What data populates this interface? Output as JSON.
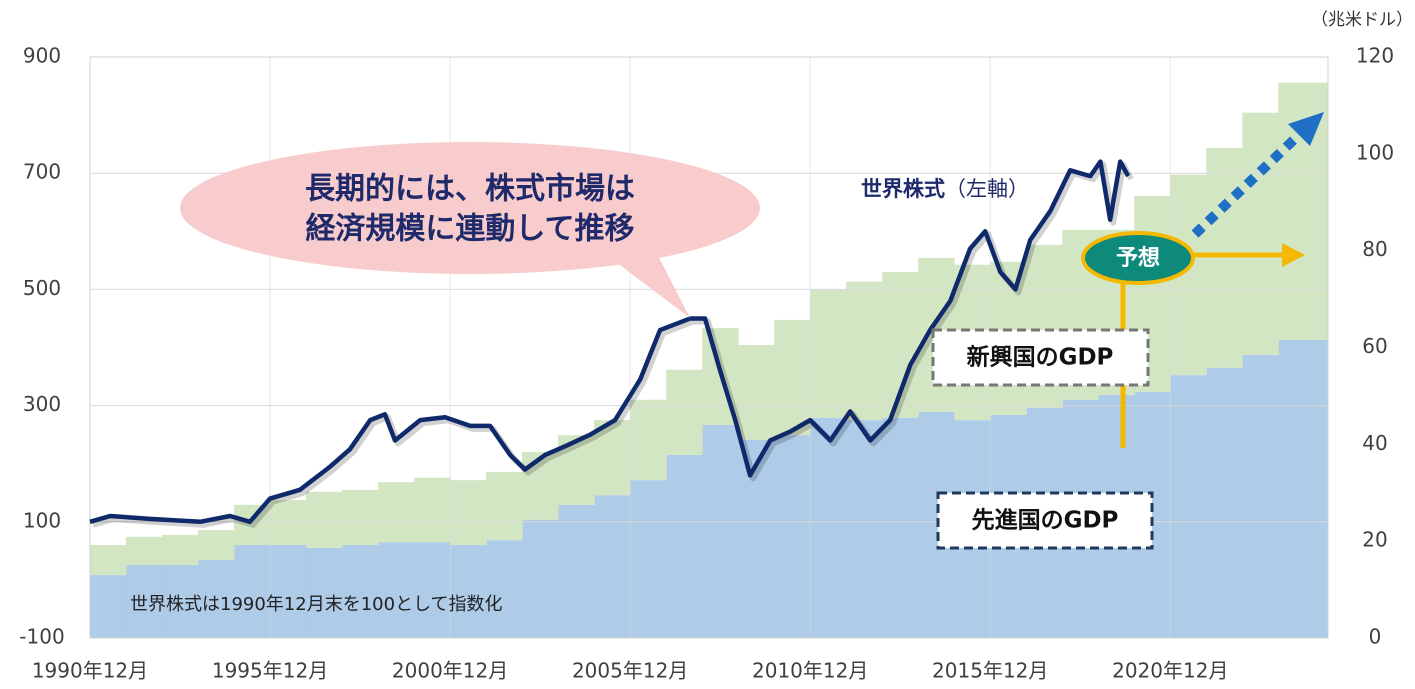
{
  "chart_data": {
    "type": "line-area",
    "annotations": [
      "長期的には、株式市場は",
      "経済規模に連動して推移",
      "（左軸）",
      "予想",
      "世界株式は1990年12月末を100として指数化"
    ],
    "y2_unit": "（兆米ドル）",
    "xlim": [
      1990.92,
      2025.3
    ],
    "xticks": [
      {
        "value": 1990.92,
        "label": "1990年12月"
      },
      {
        "value": 1995.92,
        "label": "1995年12月"
      },
      {
        "value": 2000.92,
        "label": "2000年12月"
      },
      {
        "value": 2005.92,
        "label": "2005年12月"
      },
      {
        "value": 2010.92,
        "label": "2010年12月"
      },
      {
        "value": 2015.92,
        "label": "2015年12月"
      },
      {
        "value": 2020.92,
        "label": "2020年12月"
      }
    ],
    "ylim": [
      -100,
      900
    ],
    "yticks": [
      -100,
      100,
      300,
      500,
      700,
      900
    ],
    "y2lim": [
      0,
      120
    ],
    "y2ticks": [
      0,
      20,
      40,
      60,
      80,
      100,
      120
    ],
    "grid": true,
    "series": [
      {
        "name": "先進国のGDP",
        "type": "step-area",
        "axis": "y2",
        "color": "#aecbe8",
        "x": [
          1990.92,
          1991.92,
          1992.92,
          1993.92,
          1994.92,
          1995.92,
          1996.92,
          1997.92,
          1998.92,
          1999.92,
          2000.92,
          2001.92,
          2002.92,
          2003.92,
          2004.92,
          2005.92,
          2006.92,
          2007.92,
          2008.92,
          2009.92,
          2010.92,
          2011.92,
          2012.92,
          2013.92,
          2014.92,
          2015.92,
          2016.92,
          2017.92,
          2018.92,
          2019.92,
          2020.92,
          2021.92,
          2022.92,
          2023.92
        ],
        "values": [
          13,
          15.1,
          15.1,
          16.1,
          19.2,
          19.2,
          18.6,
          19.2,
          19.8,
          19.8,
          19.2,
          20.2,
          24.4,
          27.5,
          29.5,
          32.6,
          37.8,
          44,
          40.9,
          41.9,
          45.5,
          45,
          45.5,
          46.7,
          45,
          46.1,
          47.5,
          49.2,
          50.2,
          50.8,
          54.3,
          55.8,
          58.5,
          61.6
        ]
      },
      {
        "name": "新興国のGDP",
        "type": "step-area",
        "axis": "y2",
        "color": "#d3e6c4",
        "x": [
          1990.92,
          1991.92,
          1992.92,
          1993.92,
          1994.92,
          1995.92,
          1996.92,
          1997.92,
          1998.92,
          1999.92,
          2000.92,
          2001.92,
          2002.92,
          2003.92,
          2004.92,
          2005.92,
          2006.92,
          2007.92,
          2008.92,
          2009.92,
          2010.92,
          2011.92,
          2012.92,
          2013.92,
          2014.92,
          2015.92,
          2016.92,
          2017.92,
          2018.92,
          2019.92,
          2020.92,
          2021.92,
          2022.92,
          2023.92
        ],
        "values": [
          6.2,
          5.8,
          6.2,
          6.2,
          8.3,
          9.3,
          11.6,
          11.4,
          12.4,
          13.3,
          13.4,
          14.1,
          14,
          14.4,
          15.5,
          16.6,
          17.6,
          20,
          19.6,
          23.8,
          26.4,
          28.6,
          30.1,
          31.8,
          32.1,
          31.6,
          33.7,
          35.1,
          34.1,
          40.5,
          41.4,
          45.4,
          50,
          53.1
        ]
      },
      {
        "name": "世界株式",
        "type": "line",
        "color": "#0e2a6b",
        "x": [
          1990.92,
          1991.48,
          1992.59,
          1993.98,
          1994.81,
          1995.36,
          1995.92,
          1996.75,
          1997.59,
          1998.14,
          1998.7,
          1999.11,
          1999.39,
          2000.09,
          2000.78,
          2001.48,
          2002.03,
          2002.59,
          2003.0,
          2003.56,
          2004.11,
          2004.81,
          2005.5,
          2006.2,
          2006.75,
          2007.59,
          2008.0,
          2008.42,
          2008.84,
          2009.25,
          2009.81,
          2010.36,
          2010.92,
          2011.48,
          2012.03,
          2012.59,
          2013.14,
          2013.7,
          2014.25,
          2014.81,
          2015.36,
          2015.78,
          2016.2,
          2016.62,
          2017.03,
          2017.59,
          2018.14,
          2018.7,
          2018.98,
          2019.25,
          2019.53,
          2019.75
        ],
        "values": [
          100,
          110,
          105,
          100,
          110,
          100,
          140,
          155,
          195,
          225,
          275,
          285,
          240,
          275,
          280,
          265,
          265,
          215,
          190,
          215,
          230,
          250,
          275,
          345,
          430,
          450,
          450,
          360,
          275,
          180,
          240,
          255,
          275,
          240,
          290,
          240,
          275,
          370,
          430,
          480,
          570,
          600,
          530,
          500,
          585,
          635,
          705,
          695,
          720,
          620,
          720,
          695
        ]
      }
    ]
  }
}
